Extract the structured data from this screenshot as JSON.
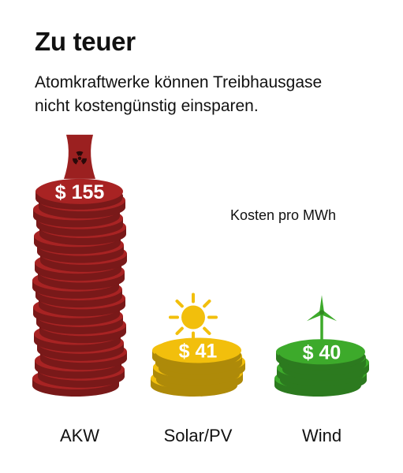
{
  "title": "Zu teuer",
  "subtitle_lines": [
    "Atomkraftwerke können Treibhausgase",
    "nicht kostengünstig einsparen."
  ],
  "unit_note": "Kosten pro MWh",
  "chart_data": {
    "type": "bar",
    "title": "Zu teuer",
    "subtitle": "Atomkraftwerke können Treibhausgase nicht kostengünstig einsparen.",
    "unit": "Kosten pro MWh",
    "categories": [
      "AKW",
      "Solar/PV",
      "Wind"
    ],
    "values": [
      155,
      41,
      40
    ],
    "value_labels": [
      "$ 155",
      "$ 41",
      "$ 40"
    ],
    "icons": [
      "nuclear-cooling-tower-icon",
      "sun-icon",
      "wind-turbine-icon"
    ],
    "colors": [
      "#a82323",
      "#f2bf0c",
      "#3daa2b"
    ],
    "ylim": [
      0,
      160
    ],
    "grid": false,
    "legend": "none"
  }
}
